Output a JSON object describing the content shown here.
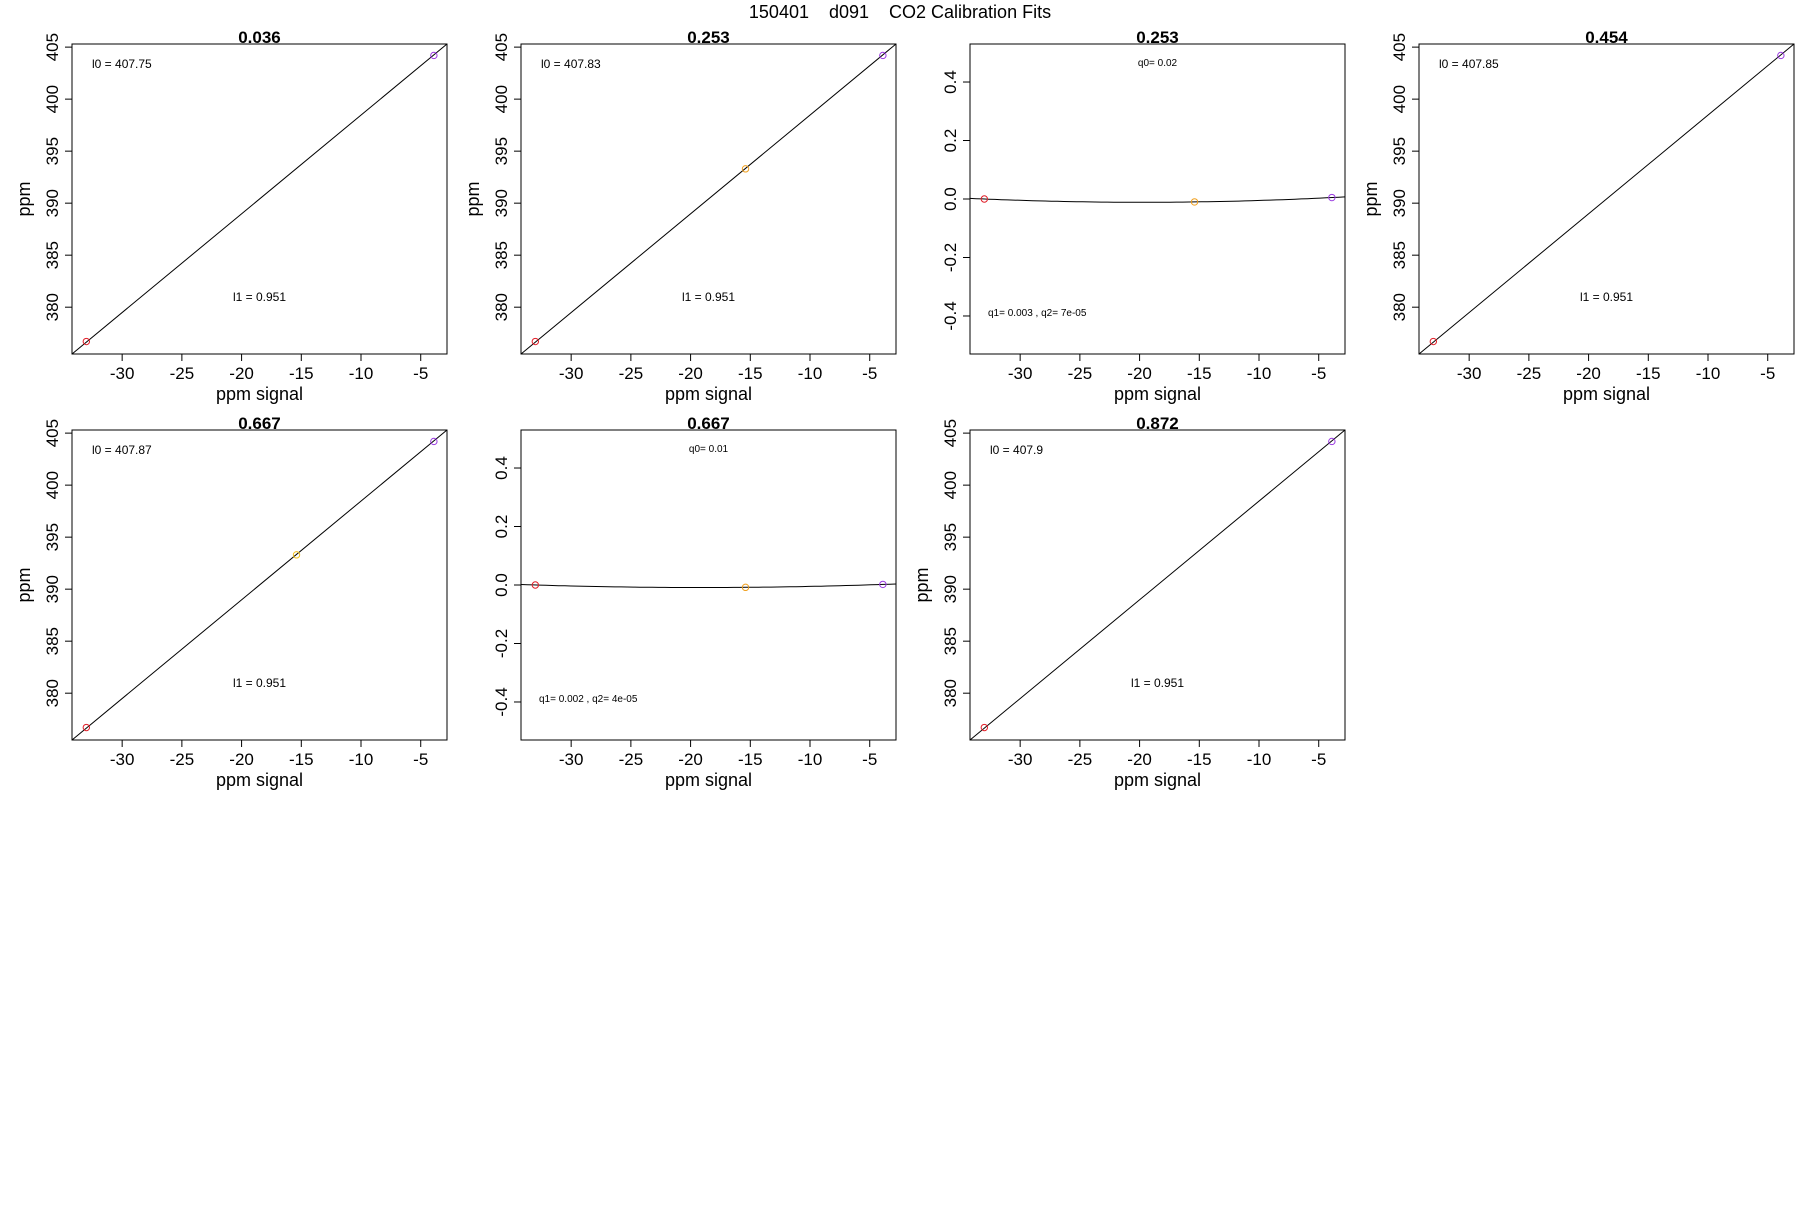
{
  "figure": {
    "title": "150401    d091    CO2 Calibration Fits"
  },
  "chart_data": [
    {
      "type": "scatter",
      "fit": "linear",
      "title": "0.036",
      "xlabel": "ppm signal",
      "ylabel": "ppm",
      "xlim": [
        -34.2,
        -2.8
      ],
      "ylim": [
        375.5,
        405.3
      ],
      "xticks": [
        "-30",
        "-25",
        "-20",
        "-15",
        "-10",
        "-5"
      ],
      "yticks": [
        "380",
        "385",
        "390",
        "395",
        "400",
        "405"
      ],
      "points": [
        {
          "x": -33,
          "y": 376.7,
          "color": "#e0202a"
        },
        {
          "x": -3.9,
          "y": 404.2,
          "color": "#9a3be0"
        }
      ],
      "line": [
        {
          "x": -34.2,
          "y": 375.5
        },
        {
          "x": -2.8,
          "y": 405.3
        }
      ],
      "labels": [
        {
          "text": "l0 =  407.75",
          "pos": "top-left"
        },
        {
          "text": "l1 =  0.951",
          "pos": "bottom-center"
        }
      ]
    },
    {
      "type": "scatter",
      "fit": "linear",
      "title": "0.253",
      "xlabel": "ppm signal",
      "ylabel": "ppm",
      "xlim": [
        -34.2,
        -2.8
      ],
      "ylim": [
        375.5,
        405.3
      ],
      "xticks": [
        "-30",
        "-25",
        "-20",
        "-15",
        "-10",
        "-5"
      ],
      "yticks": [
        "380",
        "385",
        "390",
        "395",
        "400",
        "405"
      ],
      "points": [
        {
          "x": -33,
          "y": 376.7,
          "color": "#e0202a"
        },
        {
          "x": -15.4,
          "y": 393.3,
          "color": "#f0a020"
        },
        {
          "x": -3.9,
          "y": 404.2,
          "color": "#9a3be0"
        }
      ],
      "line": [
        {
          "x": -34.2,
          "y": 375.5
        },
        {
          "x": -2.8,
          "y": 405.3
        }
      ],
      "labels": [
        {
          "text": "l0 =  407.83",
          "pos": "top-left"
        },
        {
          "text": "l1 =  0.951",
          "pos": "bottom-center"
        }
      ]
    },
    {
      "type": "scatter",
      "fit": "quadratic",
      "title": "0.253",
      "xlabel": "ppm signal",
      "ylabel": "",
      "xlim": [
        -34.2,
        -2.8
      ],
      "ylim": [
        -0.53,
        0.53
      ],
      "xticks": [
        "-30",
        "-25",
        "-20",
        "-15",
        "-10",
        "-5"
      ],
      "yticks": [
        "-0.4",
        "-0.2",
        "0.0",
        "0.2",
        "0.4"
      ],
      "points": [
        {
          "x": -33,
          "y": 0.0,
          "color": "#e0202a"
        },
        {
          "x": -15.4,
          "y": -0.01,
          "color": "#f0a020"
        },
        {
          "x": -3.9,
          "y": 0.005,
          "color": "#9a3be0"
        }
      ],
      "curve": {
        "q0": 0.02,
        "q1": 0.003,
        "q2": 7e-05
      },
      "labels": [
        {
          "text": "q0= 0.02",
          "pos": "top-center"
        },
        {
          "text": "q1= 0.003 , q2= 7e-05",
          "pos": "bottom-left"
        }
      ]
    },
    {
      "type": "scatter",
      "fit": "linear",
      "title": "0.454",
      "xlabel": "ppm signal",
      "ylabel": "ppm",
      "xlim": [
        -34.2,
        -2.8
      ],
      "ylim": [
        375.5,
        405.3
      ],
      "xticks": [
        "-30",
        "-25",
        "-20",
        "-15",
        "-10",
        "-5"
      ],
      "yticks": [
        "380",
        "385",
        "390",
        "395",
        "400",
        "405"
      ],
      "points": [
        {
          "x": -33,
          "y": 376.7,
          "color": "#e0202a"
        },
        {
          "x": -3.9,
          "y": 404.2,
          "color": "#9a3be0"
        }
      ],
      "line": [
        {
          "x": -34.2,
          "y": 375.5
        },
        {
          "x": -2.8,
          "y": 405.3
        }
      ],
      "labels": [
        {
          "text": "l0 =  407.85",
          "pos": "top-left"
        },
        {
          "text": "l1 =  0.951",
          "pos": "bottom-center"
        }
      ]
    },
    {
      "type": "scatter",
      "fit": "linear",
      "title": "0.667",
      "xlabel": "ppm signal",
      "ylabel": "ppm",
      "xlim": [
        -34.2,
        -2.8
      ],
      "ylim": [
        375.5,
        405.3
      ],
      "xticks": [
        "-30",
        "-25",
        "-20",
        "-15",
        "-10",
        "-5"
      ],
      "yticks": [
        "380",
        "385",
        "390",
        "395",
        "400",
        "405"
      ],
      "points": [
        {
          "x": -33,
          "y": 376.7,
          "color": "#e0202a"
        },
        {
          "x": -15.4,
          "y": 393.3,
          "color": "#f0c020"
        },
        {
          "x": -3.9,
          "y": 404.2,
          "color": "#9a3be0"
        }
      ],
      "line": [
        {
          "x": -34.2,
          "y": 375.5
        },
        {
          "x": -2.8,
          "y": 405.3
        }
      ],
      "labels": [
        {
          "text": "l0 =  407.87",
          "pos": "top-left"
        },
        {
          "text": "l1 =  0.951",
          "pos": "bottom-center"
        }
      ]
    },
    {
      "type": "scatter",
      "fit": "quadratic",
      "title": "0.667",
      "xlabel": "ppm signal",
      "ylabel": "",
      "xlim": [
        -34.2,
        -2.8
      ],
      "ylim": [
        -0.53,
        0.53
      ],
      "xticks": [
        "-30",
        "-25",
        "-20",
        "-15",
        "-10",
        "-5"
      ],
      "yticks": [
        "-0.4",
        "-0.2",
        "0.0",
        "0.2",
        "0.4"
      ],
      "points": [
        {
          "x": -33,
          "y": 0.0,
          "color": "#e0202a"
        },
        {
          "x": -15.4,
          "y": -0.008,
          "color": "#f0a020"
        },
        {
          "x": -3.9,
          "y": 0.002,
          "color": "#9a3be0"
        }
      ],
      "curve": {
        "q0": 0.01,
        "q1": 0.002,
        "q2": 4e-05
      },
      "labels": [
        {
          "text": "q0= 0.01",
          "pos": "top-center"
        },
        {
          "text": "q1= 0.002 , q2= 4e-05",
          "pos": "bottom-left"
        }
      ]
    },
    {
      "type": "scatter",
      "fit": "linear",
      "title": "0.872",
      "xlabel": "ppm signal",
      "ylabel": "ppm",
      "xlim": [
        -34.2,
        -2.8
      ],
      "ylim": [
        375.5,
        405.3
      ],
      "xticks": [
        "-30",
        "-25",
        "-20",
        "-15",
        "-10",
        "-5"
      ],
      "yticks": [
        "380",
        "385",
        "390",
        "395",
        "400",
        "405"
      ],
      "points": [
        {
          "x": -33,
          "y": 376.7,
          "color": "#e0202a"
        },
        {
          "x": -3.9,
          "y": 404.2,
          "color": "#9a3be0"
        }
      ],
      "line": [
        {
          "x": -34.2,
          "y": 375.5
        },
        {
          "x": -2.8,
          "y": 405.3
        }
      ],
      "labels": [
        {
          "text": "l0 =  407.9",
          "pos": "top-left"
        },
        {
          "text": "l1 =  0.951",
          "pos": "bottom-center"
        }
      ]
    }
  ]
}
